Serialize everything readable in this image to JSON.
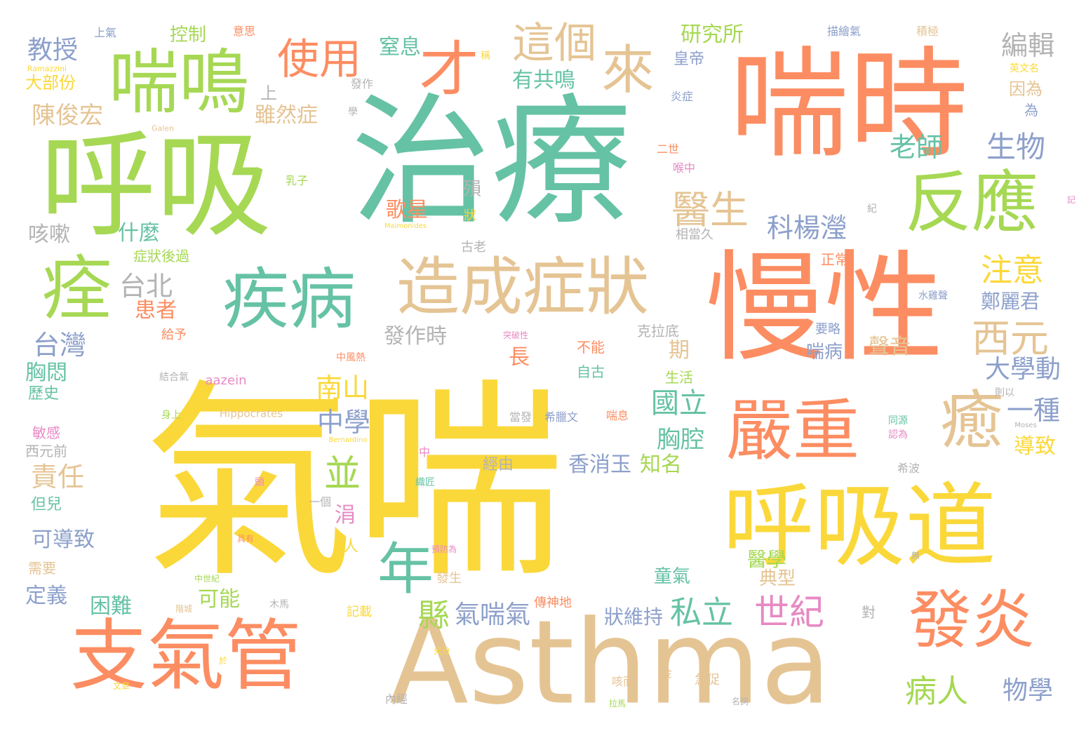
{
  "palette": {
    "yellow": "#fbd83a",
    "teal": "#66c2a5",
    "green": "#a6d854",
    "orange": "#fc8d62",
    "tan": "#e5c494",
    "blue": "#8da0cb",
    "pink": "#e78ac3",
    "gray": "#b3b3b3"
  },
  "words": [
    {
      "text": "氣喘",
      "color": "yellow"
    },
    {
      "text": "治療",
      "color": "teal"
    },
    {
      "text": "喘時",
      "color": "orange"
    },
    {
      "text": "慢性",
      "color": "orange"
    },
    {
      "text": "呼吸",
      "color": "green"
    },
    {
      "text": "Asthma",
      "color": "tan"
    },
    {
      "text": "呼吸道",
      "color": "yellow"
    },
    {
      "text": "支氣管",
      "color": "orange"
    },
    {
      "text": "喘鳴",
      "color": "green"
    },
    {
      "text": "反應",
      "color": "green"
    },
    {
      "text": "疾病",
      "color": "teal"
    },
    {
      "text": "造成症狀",
      "color": "tan"
    },
    {
      "text": "嚴重",
      "color": "orange"
    },
    {
      "text": "發炎",
      "color": "orange"
    },
    {
      "text": "癒",
      "color": "tan"
    },
    {
      "text": "痊",
      "color": "green"
    },
    {
      "text": "使用",
      "color": "orange"
    },
    {
      "text": "這個",
      "color": "tan"
    },
    {
      "text": "來",
      "color": "tan"
    },
    {
      "text": "才",
      "color": "orange"
    },
    {
      "text": "年",
      "color": "teal"
    },
    {
      "text": "醫生",
      "color": "tan"
    },
    {
      "text": "西元",
      "color": "tan"
    },
    {
      "text": "生物",
      "color": "blue"
    },
    {
      "text": "編輯",
      "color": "gray"
    },
    {
      "text": "研究所",
      "color": "green"
    },
    {
      "text": "教授",
      "color": "blue"
    },
    {
      "text": "控制",
      "color": "green"
    },
    {
      "text": "窒息",
      "color": "teal"
    },
    {
      "text": "有共鳴",
      "color": "teal"
    },
    {
      "text": "陳俊宏",
      "color": "tan"
    },
    {
      "text": "雖然症",
      "color": "tan"
    },
    {
      "text": "老師",
      "color": "teal"
    },
    {
      "text": "注意",
      "color": "yellow"
    },
    {
      "text": "科楊瀅",
      "color": "blue"
    },
    {
      "text": "台北",
      "color": "gray"
    },
    {
      "text": "台灣",
      "color": "blue"
    },
    {
      "text": "患者",
      "color": "orange"
    },
    {
      "text": "胸悶",
      "color": "teal"
    },
    {
      "text": "咳嗽",
      "color": "gray"
    },
    {
      "text": "什麼",
      "color": "teal"
    },
    {
      "text": "發作時",
      "color": "gray"
    },
    {
      "text": "南山",
      "color": "yellow"
    },
    {
      "text": "中學",
      "color": "blue"
    },
    {
      "text": "並",
      "color": "green"
    },
    {
      "text": "國立",
      "color": "teal"
    },
    {
      "text": "胸腔",
      "color": "teal"
    },
    {
      "text": "大學動",
      "color": "blue"
    },
    {
      "text": "一種",
      "color": "blue"
    },
    {
      "text": "聲音",
      "color": "tan"
    },
    {
      "text": "喘病",
      "color": "blue"
    },
    {
      "text": "香消玉",
      "color": "blue"
    },
    {
      "text": "知名",
      "color": "green"
    },
    {
      "text": "私立",
      "color": "teal"
    },
    {
      "text": "世紀",
      "color": "pink"
    },
    {
      "text": "病人",
      "color": "green"
    },
    {
      "text": "物學",
      "color": "blue"
    },
    {
      "text": "導致",
      "color": "yellow"
    },
    {
      "text": "責任",
      "color": "tan"
    },
    {
      "text": "可導致",
      "color": "blue"
    },
    {
      "text": "困難",
      "color": "teal"
    },
    {
      "text": "可能",
      "color": "green"
    },
    {
      "text": "縣",
      "color": "green"
    },
    {
      "text": "氣喘氣",
      "color": "blue"
    },
    {
      "text": "狀維持",
      "color": "blue"
    },
    {
      "text": "典型",
      "color": "tan"
    },
    {
      "text": "醫學",
      "color": "green"
    },
    {
      "text": "童氣",
      "color": "teal"
    },
    {
      "text": "歌星",
      "color": "orange"
    },
    {
      "text": "鄭麗君",
      "color": "blue"
    },
    {
      "text": "皇帝",
      "color": "blue"
    },
    {
      "text": "涓",
      "color": "pink"
    },
    {
      "text": "長",
      "color": "orange"
    },
    {
      "text": "期",
      "color": "tan"
    },
    {
      "text": "定義",
      "color": "blue"
    },
    {
      "text": "歷史",
      "color": "teal"
    },
    {
      "text": "大部份",
      "color": "yellow"
    },
    {
      "text": "因為",
      "color": "tan"
    },
    {
      "text": "上",
      "color": "gray"
    },
    {
      "text": "aazein",
      "color": "pink"
    },
    {
      "text": "Hippocrates",
      "color": "tan"
    },
    {
      "text": "Galen",
      "color": "tan"
    },
    {
      "text": "Ramazzini",
      "color": "yellow"
    },
    {
      "text": "Maimonides",
      "color": "yellow"
    },
    {
      "text": "Bernardino",
      "color": "yellow"
    },
    {
      "text": "Moses",
      "color": "gray"
    },
    {
      "text": "殞",
      "color": "gray"
    },
    {
      "text": "症狀後過",
      "color": "green"
    },
    {
      "text": "克拉底",
      "color": "gray"
    },
    {
      "text": "生活",
      "color": "green"
    },
    {
      "text": "自古",
      "color": "teal"
    },
    {
      "text": "不能",
      "color": "orange"
    },
    {
      "text": "經由",
      "color": "gray"
    },
    {
      "text": "一個",
      "color": "gray"
    },
    {
      "text": "但兒",
      "color": "teal"
    },
    {
      "text": "需要",
      "color": "tan"
    },
    {
      "text": "敏感",
      "color": "pink"
    },
    {
      "text": "西元前",
      "color": "gray"
    },
    {
      "text": "給予",
      "color": "orange"
    },
    {
      "text": "相當久",
      "color": "gray"
    },
    {
      "text": "正常",
      "color": "orange"
    },
    {
      "text": "要略",
      "color": "blue"
    },
    {
      "text": "古老",
      "color": "gray"
    },
    {
      "text": "狀",
      "color": "yellow"
    },
    {
      "text": "炎症",
      "color": "blue"
    },
    {
      "text": "喉中",
      "color": "pink"
    },
    {
      "text": "二世",
      "color": "orange"
    },
    {
      "text": "乳子",
      "color": "green"
    },
    {
      "text": "上氣",
      "color": "blue"
    },
    {
      "text": "意思",
      "color": "orange"
    },
    {
      "text": "描繪氣",
      "color": "blue"
    },
    {
      "text": "積極",
      "color": "tan"
    },
    {
      "text": "英文名",
      "color": "yellow"
    },
    {
      "text": "為",
      "color": "blue"
    },
    {
      "text": "發作",
      "color": "gray"
    },
    {
      "text": "記載",
      "color": "yellow"
    },
    {
      "text": "傳神地",
      "color": "orange"
    },
    {
      "text": "木馬",
      "color": "gray"
    },
    {
      "text": "急促",
      "color": "tan"
    },
    {
      "text": "內經",
      "color": "gray"
    },
    {
      "text": "咳而",
      "color": "tan"
    },
    {
      "text": "金",
      "color": "tan"
    },
    {
      "text": "喘息",
      "color": "orange"
    },
    {
      "text": "希臘文",
      "color": "blue"
    },
    {
      "text": "當發",
      "color": "gray"
    },
    {
      "text": "則以",
      "color": "gray"
    },
    {
      "text": "同源",
      "color": "teal"
    },
    {
      "text": "認為",
      "color": "pink"
    },
    {
      "text": "希波",
      "color": "gray"
    },
    {
      "text": "中風熱",
      "color": "orange"
    },
    {
      "text": "結合氣",
      "color": "gray"
    },
    {
      "text": "身上",
      "color": "green"
    },
    {
      "text": "對",
      "color": "gray"
    },
    {
      "text": "人",
      "color": "yellow"
    },
    {
      "text": "中",
      "color": "pink"
    },
    {
      "text": "學",
      "color": "gray"
    },
    {
      "text": "稱",
      "color": "yellow"
    },
    {
      "text": "紀",
      "color": "gray"
    },
    {
      "text": "記",
      "color": "pink"
    },
    {
      "text": "頭",
      "color": "pink"
    },
    {
      "text": "水雞聲",
      "color": "blue"
    },
    {
      "text": "突破性",
      "color": "pink"
    },
    {
      "text": "織匠",
      "color": "teal"
    },
    {
      "text": "具有",
      "color": "orange"
    },
    {
      "text": "階城",
      "color": "tan"
    },
    {
      "text": "文章",
      "color": "yellow"
    },
    {
      "text": "名詞",
      "color": "gray"
    },
    {
      "text": "拉馬",
      "color": "green"
    },
    {
      "text": "於",
      "color": "yellow"
    },
    {
      "text": "中世紀",
      "color": "green"
    },
    {
      "text": "先分",
      "color": "yellow"
    },
    {
      "text": "無",
      "color": "gray"
    },
    {
      "text": "預防為",
      "color": "pink"
    },
    {
      "text": "發生",
      "color": "tan"
    }
  ]
}
